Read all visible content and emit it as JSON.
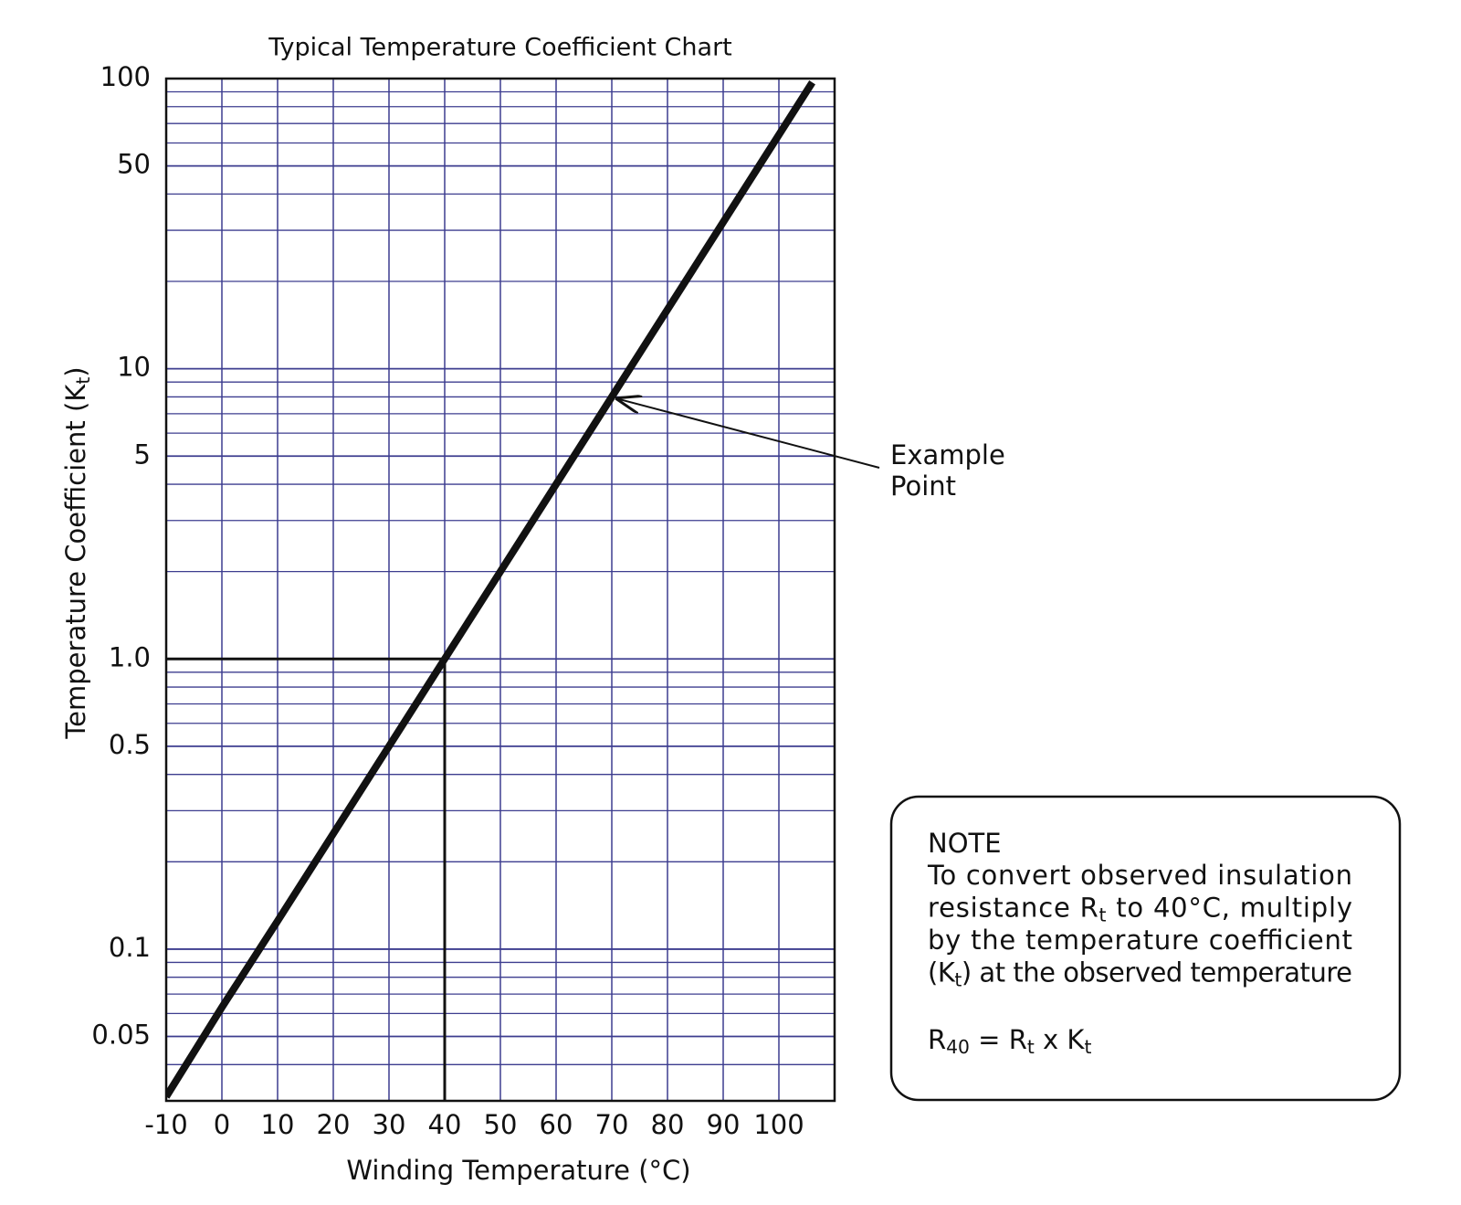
{
  "chart_data": {
    "type": "line",
    "title": "Typical Temperature Coefficient Chart",
    "x_label": "Winding Temperature (°C)",
    "y_label": [
      {
        "text": "Temperature Coefficient (K"
      },
      {
        "sub": "t"
      },
      {
        "text": ")"
      }
    ],
    "x": [
      -10,
      0,
      10,
      20,
      30,
      40,
      50,
      60,
      70,
      80,
      90,
      100,
      106
    ],
    "values": [
      0.031,
      0.063,
      0.125,
      0.25,
      0.5,
      1,
      2,
      4,
      8,
      16,
      32,
      64,
      97
    ],
    "color": "#111111",
    "xlim": [
      -10,
      110
    ],
    "xticks": [
      -10,
      0,
      10,
      20,
      30,
      40,
      50,
      60,
      70,
      80,
      90,
      100
    ],
    "ylim": [
      0.03,
      100
    ],
    "log_y": true,
    "yticks": [
      0.05,
      0.1,
      0.5,
      {
        "value": 1,
        "label": "1.0"
      },
      5,
      10,
      50,
      100
    ],
    "y_minor_ticks": [
      0.04,
      0.06,
      0.07,
      0.08,
      0.09,
      0.2,
      0.3,
      0.4,
      0.6,
      0.7,
      0.8,
      0.9,
      2,
      3,
      4,
      6,
      7,
      8,
      9,
      20,
      30,
      40,
      60,
      70,
      80,
      90
    ],
    "grid": true,
    "grid_color": "#3d3d8f",
    "reference": {
      "x": 40,
      "y": 1
    },
    "annotation": {
      "lines": [
        "Example",
        "Point"
      ],
      "x": 70,
      "y": 8
    },
    "note": {
      "title": "NOTE",
      "lines": [
        [
          {
            "text": "To convert observed insulation"
          }
        ],
        [
          {
            "text": "resistance R"
          },
          {
            "sub": "t"
          },
          {
            "text": " to 40°C, multiply"
          }
        ],
        [
          {
            "text": "by the temperature coefficient"
          }
        ],
        [
          {
            "text": "(K"
          },
          {
            "sub": "t"
          },
          {
            "text": ") at the observed temperature"
          }
        ]
      ],
      "formula": [
        {
          "text": "R"
        },
        {
          "sub": "40"
        },
        {
          "text": " = R"
        },
        {
          "sub": "t"
        },
        {
          "text": " x K"
        },
        {
          "sub": "t"
        }
      ]
    }
  }
}
